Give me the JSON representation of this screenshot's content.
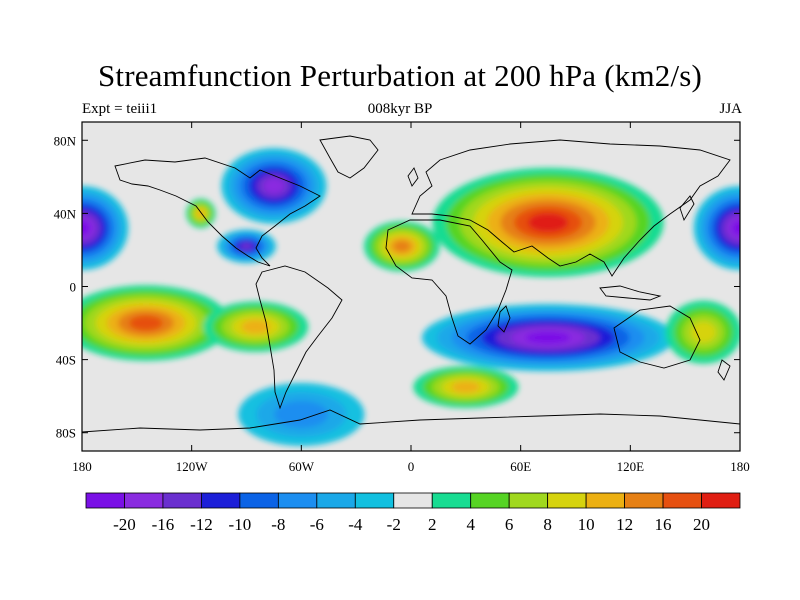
{
  "title": "Streamfunction Perturbation at 200 hPa (km2/s)",
  "left_label": "Expt = teiii1",
  "center_label": "008kyr BP",
  "right_label": "JJA",
  "map": {
    "projection": "cylindrical equidistant",
    "lon_range": [
      -180,
      180
    ],
    "lat_range": [
      -90,
      90
    ],
    "lat_ticks": [
      {
        "value": 80,
        "label": "80N"
      },
      {
        "value": 40,
        "label": "40N"
      },
      {
        "value": 0,
        "label": "0"
      },
      {
        "value": -40,
        "label": "40S"
      },
      {
        "value": -80,
        "label": "80S"
      }
    ],
    "lon_ticks": [
      {
        "value": -180,
        "label": "180"
      },
      {
        "value": -120,
        "label": "120W"
      },
      {
        "value": -60,
        "label": "60W"
      },
      {
        "value": 0,
        "label": "0"
      },
      {
        "value": 60,
        "label": "60E"
      },
      {
        "value": 120,
        "label": "120E"
      },
      {
        "value": 180,
        "label": "180"
      }
    ],
    "fields": [
      {
        "name": "north-pacific-negative",
        "lon": -180,
        "lat": 32,
        "value": -22,
        "rx": 22,
        "ry": 20
      },
      {
        "name": "north-pacific-negative-east",
        "lon": 180,
        "lat": 32,
        "value": -22,
        "rx": 22,
        "ry": 20
      },
      {
        "name": "canada-negative",
        "lon": -75,
        "lat": 55,
        "value": -16,
        "rx": 25,
        "ry": 18
      },
      {
        "name": "mexico-negative",
        "lon": -90,
        "lat": 22,
        "value": -12,
        "rx": 14,
        "ry": 8
      },
      {
        "name": "northeast-pacific-positive",
        "lon": -115,
        "lat": 40,
        "value": 10,
        "rx": 7,
        "ry": 7
      },
      {
        "name": "eurasia-positive",
        "lon": 75,
        "lat": 35,
        "value": 22,
        "rx": 55,
        "ry": 26
      },
      {
        "name": "north-africa-positive",
        "lon": -5,
        "lat": 22,
        "value": 12,
        "rx": 18,
        "ry": 12
      },
      {
        "name": "south-pacific-positive",
        "lon": -145,
        "lat": -20,
        "value": 16,
        "rx": 40,
        "ry": 18
      },
      {
        "name": "south-america-positive",
        "lon": -85,
        "lat": -22,
        "value": 10,
        "rx": 25,
        "ry": 12
      },
      {
        "name": "southern-indian-negative",
        "lon": 75,
        "lat": -28,
        "value": -22,
        "rx": 60,
        "ry": 16
      },
      {
        "name": "southern-ocean-negative",
        "lon": -60,
        "lat": -70,
        "value": -6,
        "rx": 30,
        "ry": 15
      },
      {
        "name": "south-atlantic-positive",
        "lon": 30,
        "lat": -55,
        "value": 10,
        "rx": 25,
        "ry": 10
      },
      {
        "name": "west-pacific-positive",
        "lon": 160,
        "lat": -25,
        "value": 8,
        "rx": 18,
        "ry": 15
      }
    ]
  },
  "colorbar": {
    "colors": [
      "#7a10e6",
      "#8a2ce0",
      "#6a2fcf",
      "#1c1fd8",
      "#0b63e6",
      "#1c8ef0",
      "#1aa8e8",
      "#12c0e0",
      "#e6e6e6",
      "#18dc92",
      "#56d424",
      "#a0d81e",
      "#d6d30e",
      "#ecb012",
      "#e68014",
      "#e65010",
      "#e01e12"
    ],
    "labels": [
      "-20",
      "-16",
      "-12",
      "-10",
      "-8",
      "-6",
      "-4",
      "-2",
      "2",
      "4",
      "6",
      "8",
      "10",
      "12",
      "16",
      "20"
    ]
  }
}
